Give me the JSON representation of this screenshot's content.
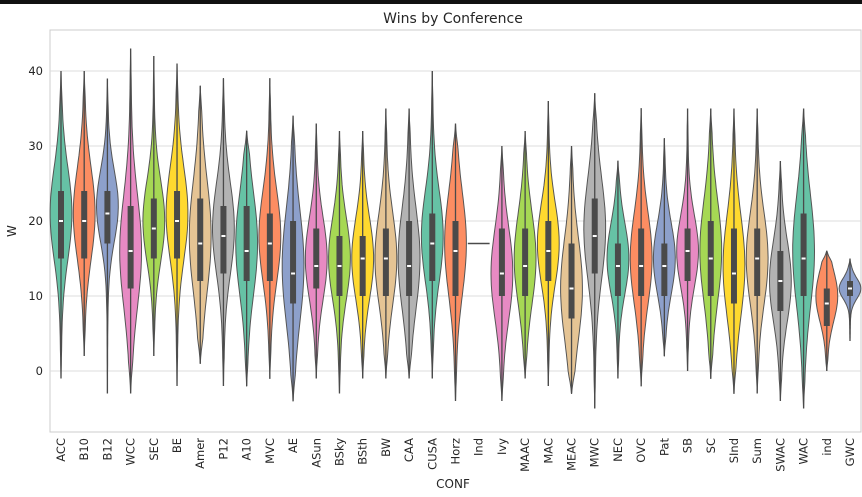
{
  "chart_data": {
    "type": "violin",
    "title": "Wins by Conference",
    "xlabel": "CONF",
    "ylabel": "W",
    "ylim": [
      -8,
      45
    ],
    "yticks": [
      0,
      10,
      20,
      30,
      40
    ],
    "grid": true,
    "legend": "none",
    "palette": [
      "#66c2a5",
      "#fc8d62",
      "#8da0cb",
      "#e78ac3",
      "#a6d854",
      "#ffd92f",
      "#e5c494",
      "#b3b3b3"
    ],
    "categories": [
      {
        "name": "ACC",
        "min": -1,
        "q1": 15,
        "median": 20,
        "q3": 24,
        "max": 40,
        "peak": 21
      },
      {
        "name": "B10",
        "min": 2,
        "q1": 15,
        "median": 20,
        "q3": 24,
        "max": 40,
        "peak": 21
      },
      {
        "name": "B12",
        "min": -3,
        "q1": 17,
        "median": 21,
        "q3": 24,
        "max": 39,
        "peak": 22
      },
      {
        "name": "WCC",
        "min": -3,
        "q1": 11,
        "median": 16,
        "q3": 22,
        "max": 43,
        "peak": 16
      },
      {
        "name": "SEC",
        "min": 2,
        "q1": 15,
        "median": 19,
        "q3": 23,
        "max": 42,
        "peak": 20
      },
      {
        "name": "BE",
        "min": -2,
        "q1": 15,
        "median": 20,
        "q3": 24,
        "max": 41,
        "peak": 21
      },
      {
        "name": "Amer",
        "min": 1,
        "q1": 12,
        "median": 17,
        "q3": 23,
        "max": 38,
        "peak": 18
      },
      {
        "name": "P12",
        "min": -2,
        "q1": 13,
        "median": 18,
        "q3": 22,
        "max": 39,
        "peak": 19
      },
      {
        "name": "A10",
        "min": -2,
        "q1": 12,
        "median": 16,
        "q3": 22,
        "max": 32,
        "peak": 17
      },
      {
        "name": "MVC",
        "min": -1,
        "q1": 12,
        "median": 17,
        "q3": 21,
        "max": 39,
        "peak": 18
      },
      {
        "name": "AE",
        "min": -4,
        "q1": 9,
        "median": 13,
        "q3": 20,
        "max": 34,
        "peak": 14
      },
      {
        "name": "ASun",
        "min": -1,
        "q1": 11,
        "median": 14,
        "q3": 19,
        "max": 33,
        "peak": 15
      },
      {
        "name": "BSky",
        "min": -3,
        "q1": 10,
        "median": 14,
        "q3": 18,
        "max": 32,
        "peak": 15
      },
      {
        "name": "BSth",
        "min": -1,
        "q1": 10,
        "median": 15,
        "q3": 18,
        "max": 32,
        "peak": 15
      },
      {
        "name": "BW",
        "min": -1,
        "q1": 10,
        "median": 15,
        "q3": 19,
        "max": 35,
        "peak": 15
      },
      {
        "name": "CAA",
        "min": -1,
        "q1": 10,
        "median": 14,
        "q3": 20,
        "max": 35,
        "peak": 15
      },
      {
        "name": "CUSA",
        "min": -1,
        "q1": 12,
        "median": 17,
        "q3": 21,
        "max": 40,
        "peak": 18
      },
      {
        "name": "Horz",
        "min": -4,
        "q1": 10,
        "median": 16,
        "q3": 20,
        "max": 33,
        "peak": 17
      },
      {
        "name": "Ind",
        "min": 17,
        "q1": 17,
        "median": 17,
        "q3": 17,
        "max": 17,
        "peak": 17
      },
      {
        "name": "Ivy",
        "min": -4,
        "q1": 10,
        "median": 13,
        "q3": 19,
        "max": 30,
        "peak": 13
      },
      {
        "name": "MAAC",
        "min": -1,
        "q1": 10,
        "median": 14,
        "q3": 19,
        "max": 32,
        "peak": 15
      },
      {
        "name": "MAC",
        "min": -2,
        "q1": 12,
        "median": 16,
        "q3": 20,
        "max": 36,
        "peak": 17
      },
      {
        "name": "MEAC",
        "min": -3,
        "q1": 7,
        "median": 11,
        "q3": 17,
        "max": 30,
        "peak": 11
      },
      {
        "name": "MWC",
        "min": -5,
        "q1": 13,
        "median": 18,
        "q3": 23,
        "max": 37,
        "peak": 19
      },
      {
        "name": "NEC",
        "min": -1,
        "q1": 10,
        "median": 14,
        "q3": 17,
        "max": 28,
        "peak": 15
      },
      {
        "name": "OVC",
        "min": -2,
        "q1": 10,
        "median": 14,
        "q3": 19,
        "max": 35,
        "peak": 15
      },
      {
        "name": "Pat",
        "min": 2,
        "q1": 10,
        "median": 14,
        "q3": 17,
        "max": 31,
        "peak": 15
      },
      {
        "name": "SB",
        "min": 0,
        "q1": 12,
        "median": 16,
        "q3": 19,
        "max": 35,
        "peak": 16
      },
      {
        "name": "SC",
        "min": -1,
        "q1": 10,
        "median": 15,
        "q3": 20,
        "max": 35,
        "peak": 16
      },
      {
        "name": "SInd",
        "min": -3,
        "q1": 9,
        "median": 13,
        "q3": 19,
        "max": 35,
        "peak": 14
      },
      {
        "name": "Sum",
        "min": -3,
        "q1": 10,
        "median": 15,
        "q3": 19,
        "max": 35,
        "peak": 15
      },
      {
        "name": "SWAC",
        "min": -4,
        "q1": 8,
        "median": 12,
        "q3": 16,
        "max": 28,
        "peak": 12
      },
      {
        "name": "WAC",
        "min": -5,
        "q1": 10,
        "median": 15,
        "q3": 21,
        "max": 35,
        "peak": 16
      },
      {
        "name": "ind",
        "min": 0,
        "q1": 6,
        "median": 9,
        "q3": 11,
        "max": 16,
        "peak": 10
      },
      {
        "name": "GWC",
        "min": 4,
        "q1": 10,
        "median": 11,
        "q3": 12,
        "max": 15,
        "peak": 11
      }
    ]
  }
}
